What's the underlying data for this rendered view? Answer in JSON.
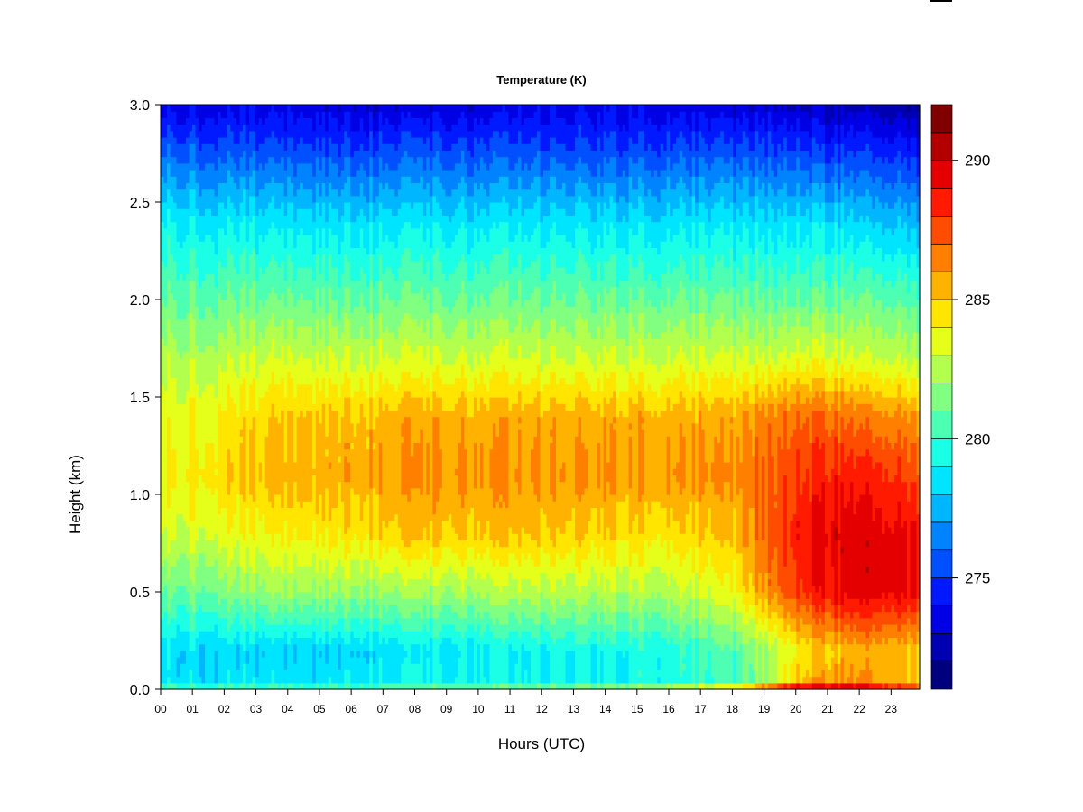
{
  "chart_data": {
    "type": "heatmap",
    "title": "Temperature (K)",
    "xlabel": "Hours (UTC)",
    "ylabel": "Height (km)",
    "x_ticks": [
      "00",
      "01",
      "02",
      "03",
      "04",
      "05",
      "06",
      "07",
      "08",
      "09",
      "10",
      "11",
      "12",
      "13",
      "14",
      "15",
      "16",
      "17",
      "18",
      "19",
      "20",
      "21",
      "22",
      "23"
    ],
    "y_ticks": [
      "0.0",
      "0.5",
      "1.0",
      "1.5",
      "2.0",
      "2.5",
      "3.0"
    ],
    "xlim": [
      0,
      23.9
    ],
    "ylim": [
      0,
      3.0
    ],
    "colorbar": {
      "ticks": [
        "275",
        "280",
        "285",
        "290"
      ],
      "tick_values": [
        275,
        280,
        285,
        290
      ],
      "range": [
        271,
        292
      ],
      "colors": [
        "#00007f",
        "#0000b2",
        "#0000e5",
        "#0019ff",
        "#0050ff",
        "#0083ff",
        "#00b6ff",
        "#00e5ff",
        "#1affe5",
        "#4dffb2",
        "#80ff80",
        "#b2ff4d",
        "#e5ff1a",
        "#ffe500",
        "#ffb300",
        "#ff8000",
        "#ff4d00",
        "#ff1a00",
        "#e50000",
        "#b20000",
        "#800000"
      ]
    },
    "grid_x": [
      0,
      4,
      8,
      12,
      16,
      18,
      19,
      20,
      21,
      22,
      23.9
    ],
    "grid_y": [
      0,
      0.05,
      0.2,
      0.5,
      0.8,
      1.1,
      1.4,
      1.7,
      2.0,
      2.4,
      2.8,
      3.0
    ],
    "values": [
      [
        281.0,
        280.5,
        281.0,
        281.5,
        283.0,
        285.0,
        288.0,
        290.5,
        291.0,
        290.5,
        288.0
      ],
      [
        278.5,
        278.5,
        279.0,
        279.0,
        279.5,
        280.0,
        282.0,
        285.0,
        286.0,
        286.0,
        285.0
      ],
      [
        278.5,
        278.0,
        278.5,
        279.0,
        279.5,
        280.5,
        282.0,
        284.0,
        285.0,
        285.5,
        285.0
      ],
      [
        281.0,
        282.0,
        282.0,
        282.5,
        282.5,
        283.5,
        286.0,
        288.0,
        289.0,
        289.5,
        289.0
      ],
      [
        283.0,
        284.0,
        285.0,
        285.0,
        284.5,
        285.0,
        287.0,
        288.5,
        289.5,
        289.5,
        289.0
      ],
      [
        284.0,
        285.5,
        286.0,
        286.0,
        286.0,
        286.0,
        287.0,
        288.0,
        288.5,
        288.5,
        287.5
      ],
      [
        283.5,
        285.0,
        285.5,
        285.5,
        285.5,
        285.5,
        286.5,
        287.0,
        287.0,
        286.5,
        286.0
      ],
      [
        282.5,
        283.0,
        283.0,
        283.0,
        283.0,
        283.0,
        283.0,
        283.5,
        283.5,
        283.0,
        282.5
      ],
      [
        281.0,
        281.0,
        281.0,
        281.0,
        281.0,
        281.0,
        281.0,
        281.0,
        281.0,
        281.0,
        280.5
      ],
      [
        279.0,
        278.5,
        278.5,
        278.5,
        278.5,
        278.5,
        278.5,
        278.5,
        278.5,
        278.0,
        277.5
      ],
      [
        275.5,
        275.0,
        275.0,
        275.0,
        275.0,
        275.0,
        275.0,
        275.0,
        274.5,
        274.5,
        274.0
      ],
      [
        273.5,
        273.5,
        273.0,
        273.5,
        273.5,
        273.0,
        273.0,
        273.0,
        272.5,
        272.5,
        272.0
      ]
    ]
  }
}
